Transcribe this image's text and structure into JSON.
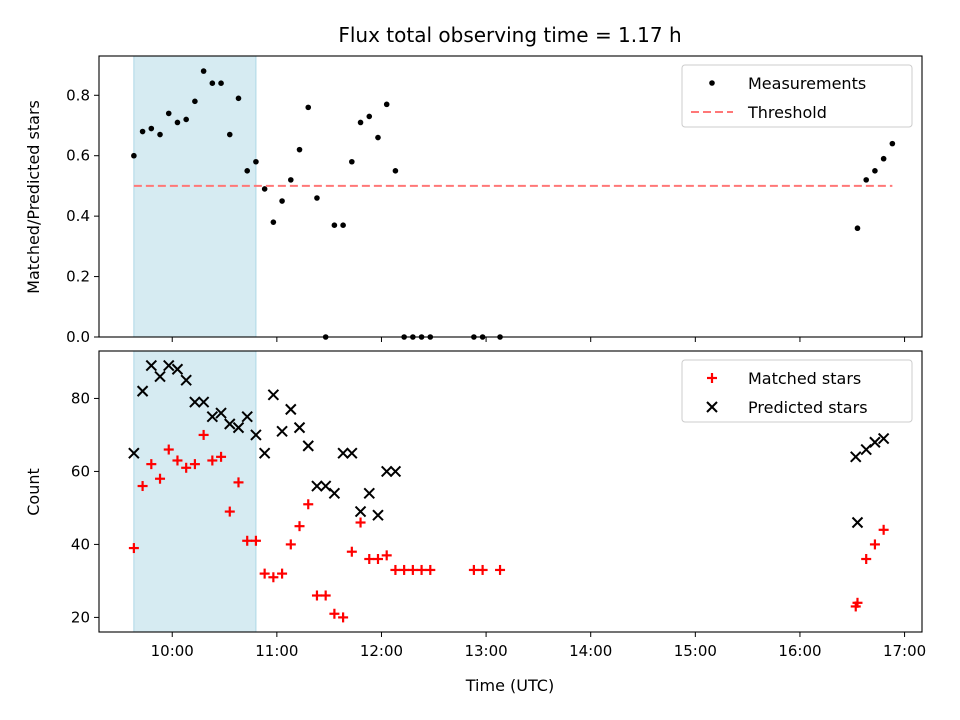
{
  "figure": {
    "title": "Flux total observing time = 1.17 h"
  },
  "chart_data": [
    {
      "type": "scatter",
      "ylabel": "Matched/Predicted stars",
      "xlabel": "",
      "xlim": [
        "09:18",
        "17:10"
      ],
      "ylim": [
        0,
        0.93
      ],
      "yticks": [
        0.0,
        0.2,
        0.4,
        0.6,
        0.8
      ],
      "ytick_labels": [
        "0.0",
        "0.2",
        "0.4",
        "0.6",
        "0.8"
      ],
      "shaded_span": {
        "x": [
          "09:38",
          "10:48"
        ],
        "color": "#add8e6"
      },
      "legend": {
        "position": "upper-right",
        "entries": [
          "Measurements",
          "Threshold"
        ]
      },
      "series": [
        {
          "name": "Measurements",
          "marker": "dot",
          "color": "#000000",
          "x": [
            "09:38",
            "09:43",
            "09:48",
            "09:53",
            "09:58",
            "10:03",
            "10:08",
            "10:13",
            "10:18",
            "10:23",
            "10:28",
            "10:33",
            "10:38",
            "10:43",
            "10:48",
            "10:53",
            "10:58",
            "11:03",
            "11:08",
            "11:13",
            "11:18",
            "11:23",
            "11:28",
            "11:33",
            "11:38",
            "11:43",
            "11:48",
            "11:53",
            "11:58",
            "12:03",
            "12:08",
            "12:13",
            "12:18",
            "12:23",
            "12:28",
            "12:53",
            "12:58",
            "13:08",
            "16:33",
            "16:38",
            "16:43",
            "16:48",
            "16:53"
          ],
          "y": [
            0.6,
            0.68,
            0.69,
            0.67,
            0.74,
            0.71,
            0.72,
            0.78,
            0.88,
            0.84,
            0.84,
            0.67,
            0.79,
            0.55,
            0.58,
            0.49,
            0.38,
            0.45,
            0.52,
            0.62,
            0.76,
            0.46,
            0.0,
            0.37,
            0.37,
            0.58,
            0.71,
            0.73,
            0.66,
            0.77,
            0.55,
            0.0,
            0.0,
            0.0,
            0.0,
            0.0,
            0.0,
            0.0,
            0.36,
            0.52,
            0.55,
            0.59,
            0.64
          ]
        },
        {
          "name": "Threshold",
          "line": "dashed",
          "color": "#ff7777",
          "x": [
            "09:38",
            "16:53"
          ],
          "y": [
            0.5,
            0.5
          ]
        }
      ]
    },
    {
      "type": "scatter",
      "ylabel": "Count",
      "xlabel": "Time (UTC)",
      "xlim": [
        "09:18",
        "17:10"
      ],
      "ylim": [
        16,
        93
      ],
      "yticks": [
        20,
        40,
        60,
        80
      ],
      "ytick_labels": [
        "20",
        "40",
        "60",
        "80"
      ],
      "xticks": [
        "10:00",
        "11:00",
        "12:00",
        "13:00",
        "14:00",
        "15:00",
        "16:00",
        "17:00"
      ],
      "shaded_span": {
        "x": [
          "09:38",
          "10:48"
        ],
        "color": "#add8e6"
      },
      "legend": {
        "position": "upper-right",
        "entries": [
          "Matched stars",
          "Predicted stars"
        ]
      },
      "series": [
        {
          "name": "Matched stars",
          "marker": "plus",
          "color": "#ff0000",
          "x": [
            "09:38",
            "09:43",
            "09:48",
            "09:53",
            "09:58",
            "10:03",
            "10:08",
            "10:13",
            "10:18",
            "10:23",
            "10:28",
            "10:33",
            "10:38",
            "10:43",
            "10:48",
            "10:53",
            "10:58",
            "11:03",
            "11:08",
            "11:13",
            "11:18",
            "11:23",
            "11:28",
            "11:33",
            "11:38",
            "11:43",
            "11:48",
            "11:53",
            "11:58",
            "12:03",
            "12:08",
            "12:13",
            "12:18",
            "12:23",
            "12:28",
            "12:53",
            "12:58",
            "13:08",
            "16:32",
            "16:33",
            "16:38",
            "16:43",
            "16:48"
          ],
          "y": [
            39,
            56,
            62,
            58,
            66,
            63,
            61,
            62,
            70,
            63,
            64,
            49,
            57,
            41,
            41,
            32,
            31,
            32,
            40,
            45,
            51,
            26,
            26,
            21,
            20,
            38,
            46,
            36,
            36,
            37,
            33,
            33,
            33,
            33,
            33,
            33,
            33,
            33,
            23,
            24,
            36,
            40,
            44
          ]
        },
        {
          "name": "Predicted stars",
          "marker": "x",
          "color": "#000000",
          "x": [
            "09:38",
            "09:43",
            "09:48",
            "09:53",
            "09:58",
            "10:03",
            "10:08",
            "10:13",
            "10:18",
            "10:23",
            "10:28",
            "10:33",
            "10:38",
            "10:43",
            "10:48",
            "10:53",
            "10:58",
            "11:03",
            "11:08",
            "11:13",
            "11:18",
            "11:23",
            "11:28",
            "11:33",
            "11:38",
            "11:43",
            "11:48",
            "11:53",
            "11:58",
            "12:03",
            "12:08",
            "16:32",
            "16:33",
            "16:38",
            "16:43",
            "16:48"
          ],
          "y": [
            65,
            82,
            89,
            86,
            89,
            88,
            85,
            79,
            79,
            75,
            76,
            73,
            72,
            75,
            70,
            65,
            81,
            71,
            77,
            72,
            67,
            56,
            56,
            54,
            65,
            65,
            49,
            54,
            48,
            60,
            60,
            64,
            46,
            66,
            68,
            69
          ]
        }
      ]
    }
  ]
}
